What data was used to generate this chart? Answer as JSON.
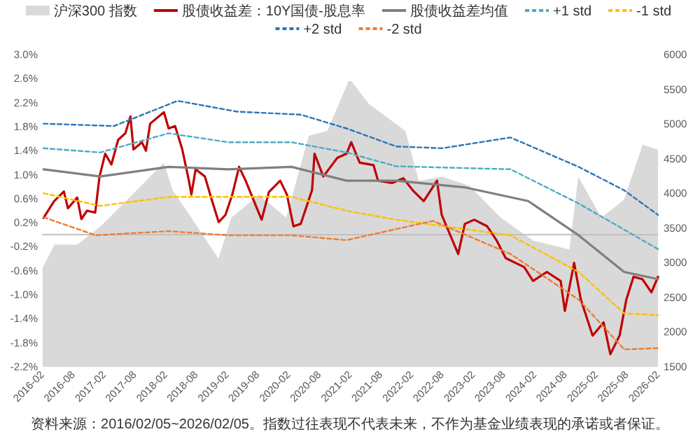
{
  "chart_data": {
    "type": "line",
    "legend": "top",
    "marker": "none",
    "annotations": [
      "资料来源：2016/02/05~2026/02/05。指数过往表现不代表未来，不作为基金业绩表现的承诺或者保证。"
    ],
    "xlim": [
      "2016-02-01",
      "2026-02-05"
    ],
    "xticks": [
      {
        "value": "2016-02-01",
        "label": "2016-02"
      },
      {
        "value": "2016-08-01",
        "label": "2016-08"
      },
      {
        "value": "2017-02-01",
        "label": "2017-02"
      },
      {
        "value": "2017-08-01",
        "label": "2017-08"
      },
      {
        "value": "2018-02-01",
        "label": "2018-02"
      },
      {
        "value": "2018-08-01",
        "label": "2018-08"
      },
      {
        "value": "2019-02-01",
        "label": "2019-02"
      },
      {
        "value": "2019-08-01",
        "label": "2019-08"
      },
      {
        "value": "2020-02-01",
        "label": "2020-02"
      },
      {
        "value": "2020-08-01",
        "label": "2020-08"
      },
      {
        "value": "2021-02-01",
        "label": "2021-02"
      },
      {
        "value": "2021-08-01",
        "label": "2021-08"
      },
      {
        "value": "2022-02-01",
        "label": "2022-02"
      },
      {
        "value": "2022-08-01",
        "label": "2022-08"
      },
      {
        "value": "2023-02-01",
        "label": "2023-02"
      },
      {
        "value": "2023-08-01",
        "label": "2023-08"
      },
      {
        "value": "2024-02-01",
        "label": "2024-02"
      },
      {
        "value": "2024-08-01",
        "label": "2024-08"
      },
      {
        "value": "2025-02-01",
        "label": "2025-02"
      },
      {
        "value": "2025-08-01",
        "label": "2025-08"
      },
      {
        "value": "2026-02-01",
        "label": "2026-02"
      }
    ],
    "ylim": [
      -2.2,
      3.0
    ],
    "yticks": [
      {
        "value": 3.0,
        "label": "3.0%"
      },
      {
        "value": 2.6,
        "label": "2.6%"
      },
      {
        "value": 2.2,
        "label": "2.2%"
      },
      {
        "value": 1.8,
        "label": "1.8%"
      },
      {
        "value": 1.4,
        "label": "1.4%"
      },
      {
        "value": 1.0,
        "label": "1.0%"
      },
      {
        "value": 0.6,
        "label": "0.6%"
      },
      {
        "value": 0.2,
        "label": "0.2%"
      },
      {
        "value": -0.2,
        "label": "-0.2%"
      },
      {
        "value": -0.6,
        "label": "-0.6%"
      },
      {
        "value": -1.0,
        "label": "-1.0%"
      },
      {
        "value": -1.4,
        "label": "-1.4%"
      },
      {
        "value": -1.8,
        "label": "-1.8%"
      },
      {
        "value": -2.2,
        "label": "-2.2%"
      }
    ],
    "y2lim": [
      1500,
      6000
    ],
    "y2ticks": [
      1500,
      2000,
      2500,
      3000,
      3500,
      4000,
      4500,
      5000,
      5500,
      6000
    ],
    "ref_lines": [
      {
        "axis": "y",
        "value": 0,
        "color": "#bfbfbf"
      }
    ],
    "series": [
      {
        "name": "沪深300 指数",
        "type": "area",
        "axis": "y2",
        "color": "#d9d9d9",
        "x": [
          "2016-02-05",
          "2016-04-15",
          "2016-08-28",
          "2017-01-12",
          "2017-10-10",
          "2018-01-25",
          "2018-03-18",
          "2018-07-07",
          "2018-12-15",
          "2019-03-01",
          "2019-08-12",
          "2020-01-21",
          "2020-06-03",
          "2020-09-21",
          "2021-01-25",
          "2021-02-10",
          "2021-05-25",
          "2021-12-28",
          "2022-03-18",
          "2022-08-03",
          "2023-01-12",
          "2023-07-18",
          "2024-01-25",
          "2024-08-28",
          "2024-10-20",
          "2025-03-06",
          "2025-07-18",
          "2025-11-06",
          "2026-02-05"
        ],
        "values": [
          2930,
          3260,
          3260,
          3520,
          4180,
          4440,
          4040,
          3650,
          3060,
          3650,
          3980,
          3650,
          4830,
          4900,
          5620,
          5620,
          5290,
          4900,
          4180,
          4240,
          4110,
          3650,
          3320,
          3190,
          4240,
          3650,
          3910,
          4700,
          4630
        ]
      },
      {
        "name": "股债收益差：10Y国债-股息率",
        "color": "#c00000",
        "line_style": "solid",
        "x": [
          "2016-02-10",
          "2016-04-13",
          "2016-06-10",
          "2016-07-04",
          "2016-08-28",
          "2016-09-22",
          "2016-10-25",
          "2016-12-13",
          "2017-01-07",
          "2017-02-10",
          "2017-03-19",
          "2017-04-28",
          "2017-06-10",
          "2017-07-10",
          "2017-07-28",
          "2017-09-16",
          "2017-10-10",
          "2017-11-04",
          "2018-01-25",
          "2018-02-22",
          "2018-04-01",
          "2018-05-13",
          "2018-06-22",
          "2018-07-07",
          "2018-08-01",
          "2018-09-25",
          "2018-11-04",
          "2018-12-16",
          "2019-01-25",
          "2019-03-07",
          "2019-04-16",
          "2019-05-25",
          "2019-07-19",
          "2019-08-28",
          "2019-10-10",
          "2019-12-16",
          "2020-01-25",
          "2020-03-04",
          "2020-04-16",
          "2020-06-22",
          "2020-07-07",
          "2020-08-28",
          "2020-10-10",
          "2020-11-19",
          "2021-01-13",
          "2021-02-10",
          "2021-04-01",
          "2021-06-22",
          "2021-07-19",
          "2021-10-10",
          "2021-12-16",
          "2022-02-10",
          "2022-04-16",
          "2022-07-04",
          "2022-08-01",
          "2022-11-07",
          "2022-12-16",
          "2023-02-10",
          "2023-04-28",
          "2023-06-22",
          "2023-08-16",
          "2023-12-04",
          "2024-01-25",
          "2024-04-16",
          "2024-07-07",
          "2024-08-01",
          "2024-09-25",
          "2024-11-04",
          "2025-01-13",
          "2025-03-19",
          "2025-04-28",
          "2025-06-22",
          "2025-08-01",
          "2025-09-13",
          "2025-11-04",
          "2025-12-28",
          "2026-02-05"
        ],
        "values": [
          0.28,
          0.56,
          0.72,
          0.44,
          0.62,
          0.26,
          0.4,
          0.37,
          0.96,
          1.35,
          1.17,
          1.58,
          1.69,
          1.97,
          1.42,
          1.54,
          1.4,
          1.85,
          2.04,
          1.77,
          1.81,
          1.43,
          0.9,
          0.67,
          1.09,
          0.97,
          0.59,
          0.21,
          0.33,
          0.67,
          1.13,
          0.9,
          0.52,
          0.25,
          0.71,
          0.9,
          0.67,
          0.14,
          0.18,
          0.74,
          1.35,
          0.97,
          1.13,
          1.28,
          1.35,
          1.54,
          1.2,
          1.16,
          0.9,
          0.86,
          0.94,
          0.74,
          0.56,
          0.9,
          0.33,
          -0.32,
          0.18,
          0.25,
          0.14,
          -0.09,
          -0.39,
          -0.54,
          -0.77,
          -0.62,
          -0.77,
          -1.27,
          -0.47,
          -1.08,
          -1.68,
          -1.46,
          -1.99,
          -1.68,
          -1.08,
          -0.7,
          -0.74,
          -0.96,
          -0.7
        ]
      },
      {
        "name": "股债收益差均值",
        "color": "#7f7f7f",
        "line_style": "solid",
        "x": [
          "2016-02-10",
          "2017-01-12",
          "2018-02-22",
          "2019-02-10",
          "2020-02-22",
          "2021-01-13",
          "2021-11-04",
          "2022-12-13",
          "2023-12-28",
          "2024-10-22",
          "2025-07-19",
          "2026-02-05"
        ],
        "values": [
          1.09,
          0.97,
          1.13,
          1.09,
          1.13,
          0.9,
          0.9,
          0.79,
          0.56,
          -0.01,
          -0.62,
          -0.74
        ]
      },
      {
        "name": "+1 std",
        "color": "#4bacc6",
        "line_style": "dashed",
        "x": [
          "2016-02-10",
          "2017-01-12",
          "2018-02-22",
          "2019-02-10",
          "2020-02-22",
          "2021-01-13",
          "2021-11-04",
          "2023-09-13",
          "2024-10-22",
          "2026-02-05"
        ],
        "values": [
          1.44,
          1.37,
          1.69,
          1.54,
          1.54,
          1.37,
          1.14,
          1.09,
          0.52,
          -0.24
        ]
      },
      {
        "name": "-1 std",
        "color": "#ffc000",
        "line_style": "dashed",
        "x": [
          "2016-02-10",
          "2017-01-12",
          "2018-02-22",
          "2019-02-10",
          "2020-02-22",
          "2021-01-13",
          "2021-11-04",
          "2023-09-13",
          "2024-10-22",
          "2025-07-19",
          "2026-02-05"
        ],
        "values": [
          0.69,
          0.48,
          0.63,
          0.63,
          0.63,
          0.4,
          0.25,
          -0.01,
          -0.62,
          -1.31,
          -1.34
        ]
      },
      {
        "name": "+2 std",
        "color": "#2e75b6",
        "line_style": "dashed",
        "x": [
          "2016-02-10",
          "2017-04-04",
          "2018-04-16",
          "2019-04-04",
          "2020-04-16",
          "2021-01-13",
          "2021-11-04",
          "2022-08-04",
          "2023-09-13",
          "2024-10-22",
          "2025-07-19",
          "2026-02-05"
        ],
        "values": [
          1.85,
          1.81,
          2.23,
          2.05,
          2.0,
          1.77,
          1.47,
          1.44,
          1.62,
          1.13,
          0.74,
          0.33
        ]
      },
      {
        "name": "-2 std",
        "color": "#ed7d31",
        "line_style": "dashed",
        "x": [
          "2016-02-10",
          "2016-12-16",
          "2018-02-22",
          "2019-02-10",
          "2020-02-22",
          "2021-01-13",
          "2022-06-10",
          "2023-09-13",
          "2024-10-22",
          "2025-07-19",
          "2026-02-05"
        ],
        "values": [
          0.29,
          -0.01,
          0.06,
          -0.01,
          -0.01,
          -0.09,
          0.23,
          -0.32,
          -1.08,
          -1.91,
          -1.89
        ]
      }
    ]
  }
}
